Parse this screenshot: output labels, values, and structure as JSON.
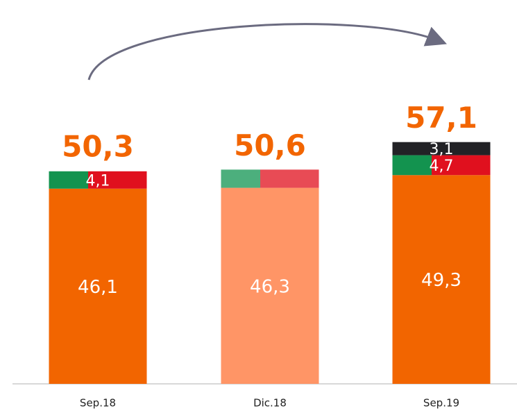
{
  "chart_data": {
    "type": "stacked_bar",
    "categories": [
      "Sep.18",
      "Dic.18",
      "Sep.19"
    ],
    "series": [
      {
        "values": [
          46.1,
          46.3,
          49.3
        ],
        "value_labels": [
          "46,1",
          "46,3",
          "49,3"
        ],
        "colors": [
          "#f26500",
          "#ff9566",
          "#f26500"
        ]
      },
      {
        "values": [
          4.1,
          4.3,
          4.7
        ],
        "value_labels": [
          "4,1",
          null,
          "4,7"
        ],
        "colors": [
          "#13934f",
          "#4caf7d",
          "#13934f"
        ],
        "colors2": [
          "#e0101e",
          "#e84b55",
          "#e0101e"
        ]
      },
      {
        "values": [
          null,
          null,
          3.1
        ],
        "value_labels": [
          null,
          null,
          "3,1"
        ],
        "colors": [
          "#222226",
          "#222226",
          "#222226"
        ]
      }
    ],
    "totals": [
      50.3,
      50.6,
      57.1
    ],
    "total_labels": [
      "50,3",
      "50,6",
      "57,1"
    ],
    "total_color": "#f26500"
  }
}
